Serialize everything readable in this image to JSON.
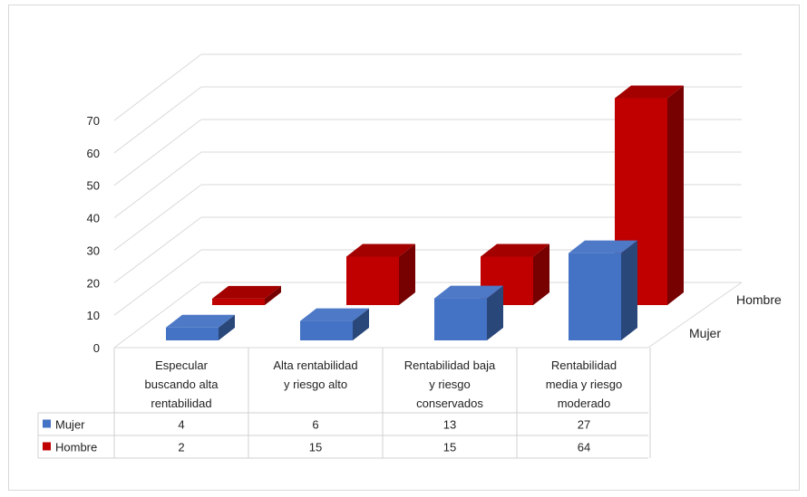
{
  "chart_data": {
    "type": "bar",
    "style": "3d-clustered-depth",
    "categories": [
      "Especular buscando alta rentabilidad",
      "Alta rentabilidad y riesgo alto",
      "Rentabilidad baja y riesgo conservados",
      "Rentabilidad media y riesgo moderado"
    ],
    "category_lines": [
      [
        "Especular",
        "buscando alta",
        "rentabilidad"
      ],
      [
        "Alta rentabilidad",
        "y riesgo alto"
      ],
      [
        "Rentabilidad baja",
        "y riesgo",
        "conservados"
      ],
      [
        "Rentabilidad",
        "media y riesgo",
        "moderado"
      ]
    ],
    "series": [
      {
        "name": "Mujer",
        "color": "#4472c4",
        "values": [
          4,
          6,
          13,
          27
        ]
      },
      {
        "name": "Hombre",
        "color": "#c00000",
        "values": [
          2,
          15,
          15,
          64
        ]
      }
    ],
    "ylim": [
      0,
      70
    ],
    "yticks": [
      0,
      10,
      20,
      30,
      40,
      50,
      60,
      70
    ],
    "grid": true,
    "data_table": true,
    "title": "",
    "xlabel": "",
    "ylabel": ""
  }
}
